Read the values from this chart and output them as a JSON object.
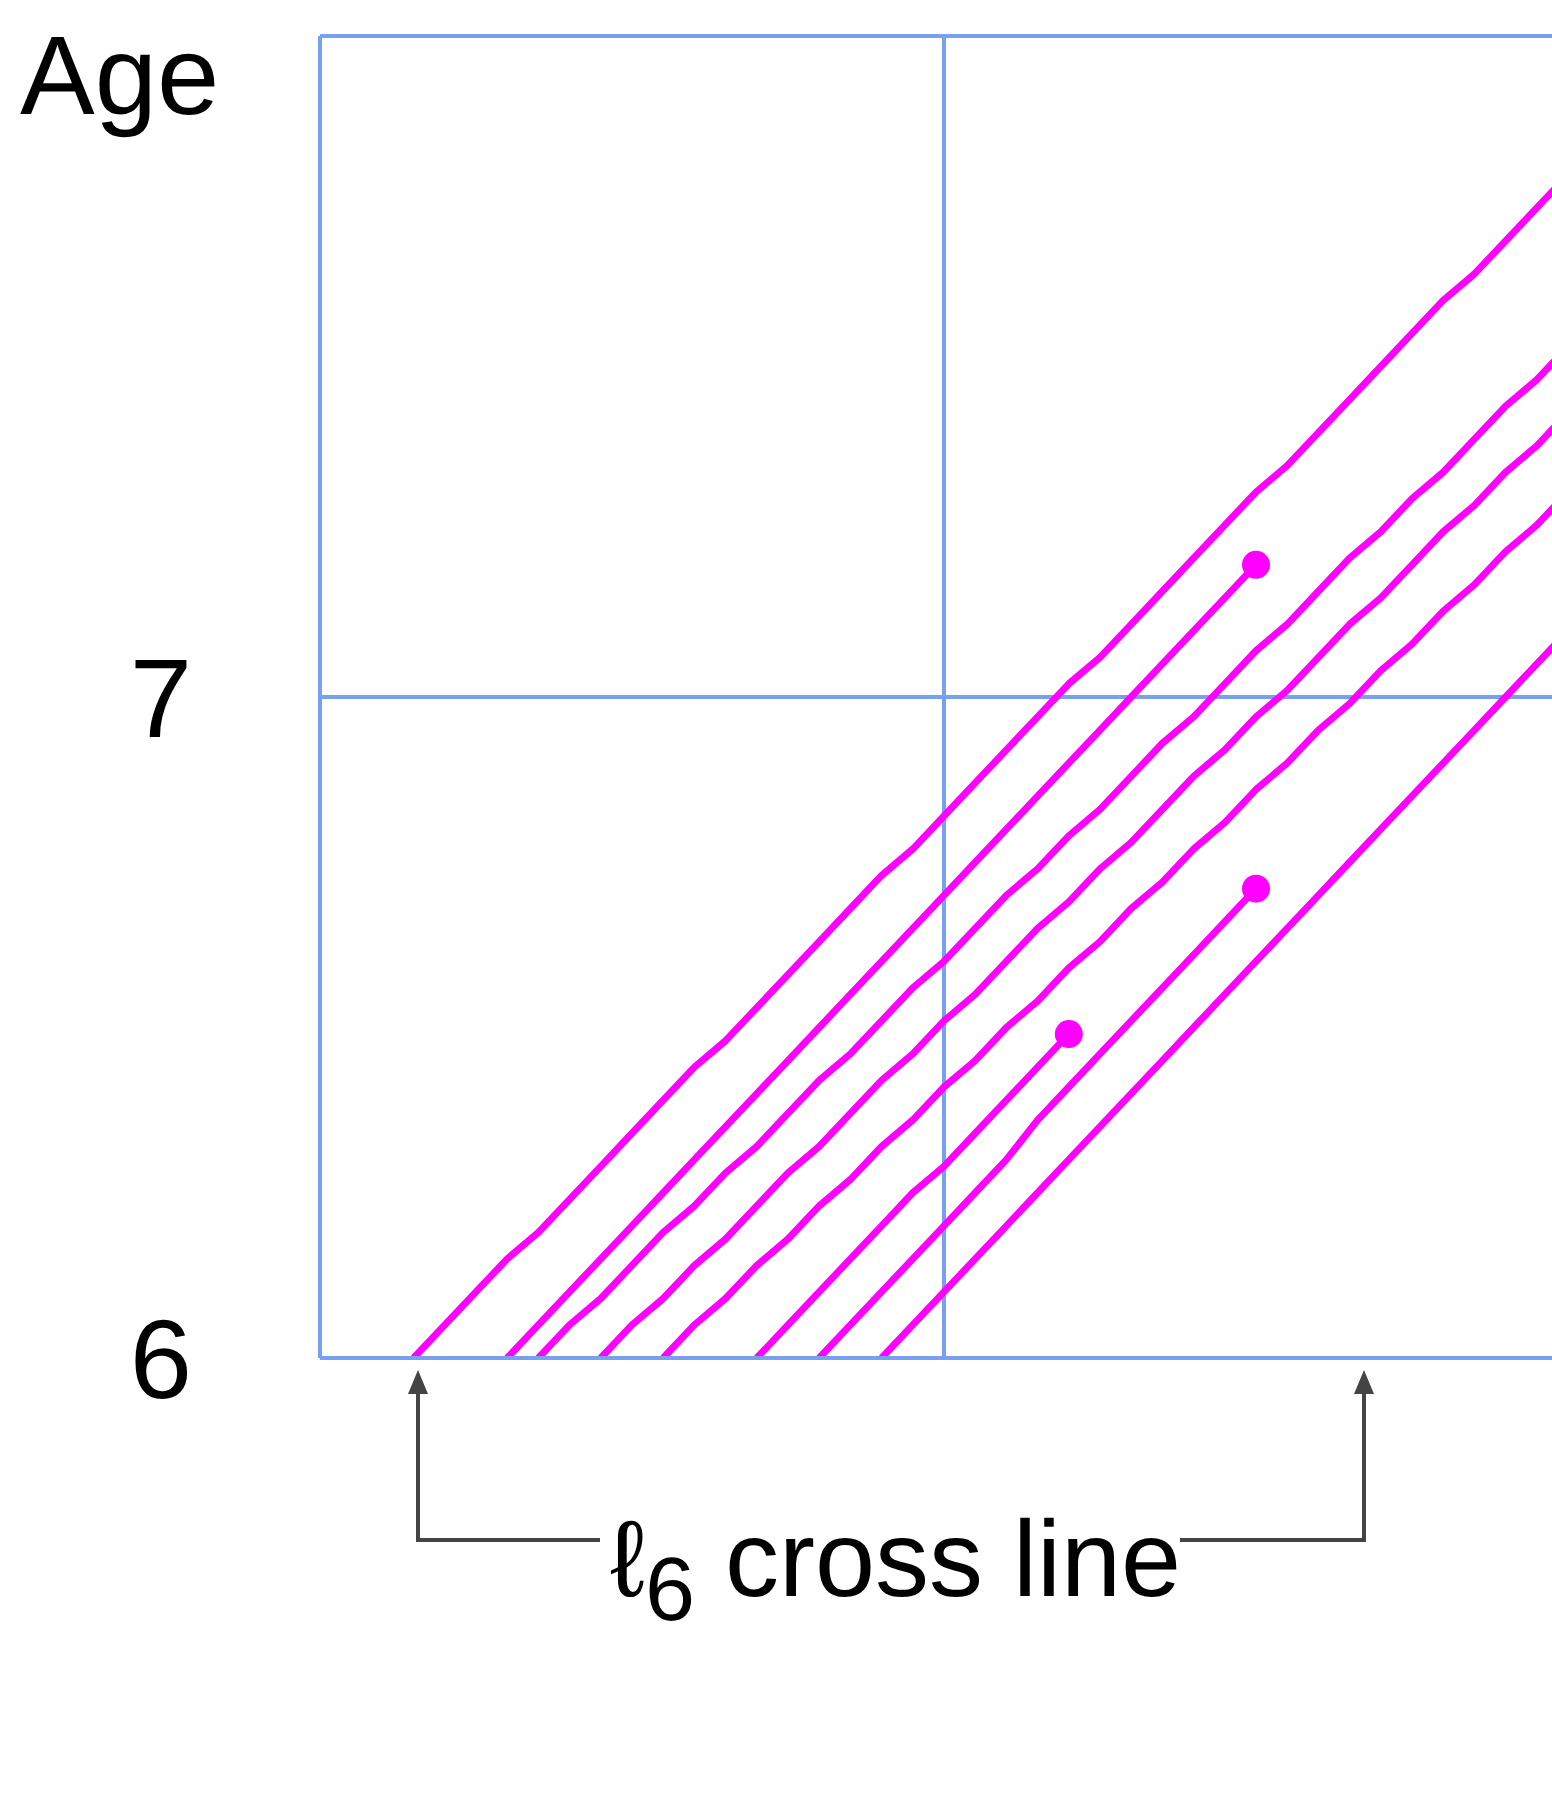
{
  "chart_data": {
    "type": "line",
    "ylabel": "Age",
    "ylim": [
      6,
      8
    ],
    "yticks": [
      6,
      7,
      {
        "value": 8,
        "label": null
      }
    ],
    "tick_labels": "y",
    "grid": true,
    "line_style": "solid",
    "marker": "none",
    "annotations": [
      "ℓ$_{6}$ cross line"
    ],
    "categories": [
      null,
      null,
      null,
      null,
      null,
      null,
      null,
      null,
      null,
      null,
      null,
      null,
      null,
      null,
      null,
      null,
      null,
      null,
      null,
      null,
      null,
      null,
      null,
      null,
      null,
      null,
      null,
      null,
      null,
      null,
      null,
      null,
      null,
      null,
      null,
      null,
      null,
      null,
      null,
      null,
      null
    ],
    "series": [
      {
        "color": "#ff00ff",
        "values": [
          null,
          null,
          null,
          6,
          6.05,
          6.1,
          6.15,
          6.19,
          6.24,
          6.29,
          6.34,
          6.39,
          6.44,
          6.48,
          6.53,
          6.58,
          6.63,
          6.68,
          6.73,
          6.77,
          6.82,
          6.87,
          6.92,
          6.97,
          7.02,
          7.06,
          7.11,
          7.16,
          7.21,
          7.26,
          7.31,
          7.35,
          7.4,
          7.45,
          7.5,
          7.55,
          7.6,
          7.64,
          7.69,
          7.74,
          7.79
        ]
      },
      {
        "color": "#ff00ff",
        "values": [
          null,
          null,
          null,
          null,
          null,
          null,
          6,
          6.05,
          6.1,
          6.15,
          6.2,
          6.25,
          6.3,
          6.35,
          6.4,
          6.45,
          6.5,
          6.55,
          6.6,
          6.65,
          6.7,
          6.75,
          6.8,
          6.85,
          6.9,
          6.95,
          7,
          7.05,
          7.1,
          7.15,
          7.2,
          null,
          null,
          null,
          null,
          null,
          null,
          null,
          null,
          null,
          null
        ]
      },
      {
        "color": "#ff00ff",
        "values": [
          null,
          null,
          null,
          null,
          null,
          null,
          null,
          6,
          6.05,
          6.09,
          6.14,
          6.19,
          6.23,
          6.28,
          6.32,
          6.37,
          6.42,
          6.46,
          6.51,
          6.56,
          6.6,
          6.65,
          6.7,
          6.74,
          6.79,
          6.83,
          6.88,
          6.93,
          6.97,
          7.02,
          7.07,
          7.11,
          7.16,
          7.21,
          7.25,
          7.3,
          7.34,
          7.39,
          7.44,
          7.48,
          7.53
        ]
      },
      {
        "color": "#ff00ff",
        "values": [
          null,
          null,
          null,
          null,
          null,
          null,
          null,
          null,
          null,
          6,
          6.05,
          6.09,
          6.14,
          6.18,
          6.23,
          6.28,
          6.32,
          6.37,
          6.42,
          6.46,
          6.51,
          6.55,
          6.6,
          6.65,
          6.69,
          6.74,
          6.78,
          6.83,
          6.88,
          6.92,
          6.97,
          7.01,
          7.06,
          7.11,
          7.15,
          7.2,
          7.25,
          7.29,
          7.34,
          7.38,
          7.43
        ]
      },
      {
        "color": "#ff00ff",
        "values": [
          null,
          null,
          null,
          null,
          null,
          null,
          null,
          null,
          null,
          null,
          null,
          6,
          6.05,
          6.09,
          6.14,
          6.18,
          6.23,
          6.27,
          6.32,
          6.36,
          6.41,
          6.45,
          6.5,
          6.54,
          6.59,
          6.63,
          6.68,
          6.72,
          6.77,
          6.81,
          6.86,
          6.9,
          6.95,
          6.99,
          7.04,
          7.08,
          7.13,
          7.17,
          7.22,
          7.26,
          7.31
        ]
      },
      {
        "color": "#ff00ff",
        "values": [
          null,
          null,
          null,
          null,
          null,
          null,
          null,
          null,
          null,
          null,
          null,
          null,
          null,
          null,
          6,
          6.05,
          6.1,
          6.15,
          6.2,
          6.25,
          6.29,
          6.34,
          6.39,
          6.44,
          6.49,
          null,
          null,
          null,
          null,
          null,
          null,
          null,
          null,
          null,
          null,
          null,
          null,
          null,
          null,
          null,
          null
        ]
      },
      {
        "color": "#ff00ff",
        "values": [
          null,
          null,
          null,
          null,
          null,
          null,
          null,
          null,
          null,
          null,
          null,
          null,
          null,
          null,
          null,
          null,
          6,
          6.05,
          6.1,
          6.15,
          6.2,
          6.25,
          6.3,
          6.36,
          6.41,
          6.46,
          6.51,
          6.56,
          6.61,
          6.66,
          6.71,
          null,
          null,
          null,
          null,
          null,
          null,
          null,
          null,
          null,
          null
        ]
      },
      {
        "color": "#ff00ff",
        "values": [
          null,
          null,
          null,
          null,
          null,
          null,
          null,
          null,
          null,
          null,
          null,
          null,
          null,
          null,
          null,
          null,
          null,
          null,
          6,
          6.05,
          6.1,
          6.15,
          6.2,
          6.25,
          6.3,
          6.35,
          6.4,
          6.45,
          6.5,
          6.55,
          6.6,
          6.65,
          6.7,
          6.75,
          6.8,
          6.85,
          6.9,
          6.95,
          7,
          7.05,
          7.1
        ]
      },
      {
        "type": "scatter",
        "marker": "circle",
        "color": "#ff00ff",
        "values": [
          null,
          null,
          null,
          null,
          null,
          null,
          null,
          null,
          null,
          null,
          null,
          null,
          null,
          null,
          null,
          null,
          null,
          null,
          null,
          null,
          null,
          null,
          null,
          null,
          null,
          null,
          null,
          null,
          null,
          null,
          7.2,
          null,
          null,
          null,
          null,
          null,
          null,
          null,
          null,
          null,
          null
        ]
      },
      {
        "type": "scatter",
        "marker": "circle",
        "color": "#ff00ff",
        "values": [
          null,
          null,
          null,
          null,
          null,
          null,
          null,
          null,
          null,
          null,
          null,
          null,
          null,
          null,
          null,
          null,
          null,
          null,
          null,
          null,
          null,
          null,
          null,
          null,
          6.49,
          null,
          null,
          null,
          null,
          null,
          null,
          null,
          null,
          null,
          null,
          null,
          null,
          null,
          null,
          null,
          null
        ]
      },
      {
        "type": "scatter",
        "marker": "circle",
        "color": "#ff00ff",
        "values": [
          null,
          null,
          null,
          null,
          null,
          null,
          null,
          null,
          null,
          null,
          null,
          null,
          null,
          null,
          null,
          null,
          null,
          null,
          null,
          null,
          null,
          null,
          null,
          null,
          null,
          null,
          null,
          null,
          null,
          null,
          6.71,
          null,
          null,
          null,
          null,
          null,
          null,
          null,
          null,
          null,
          null
        ]
      }
    ]
  }
}
